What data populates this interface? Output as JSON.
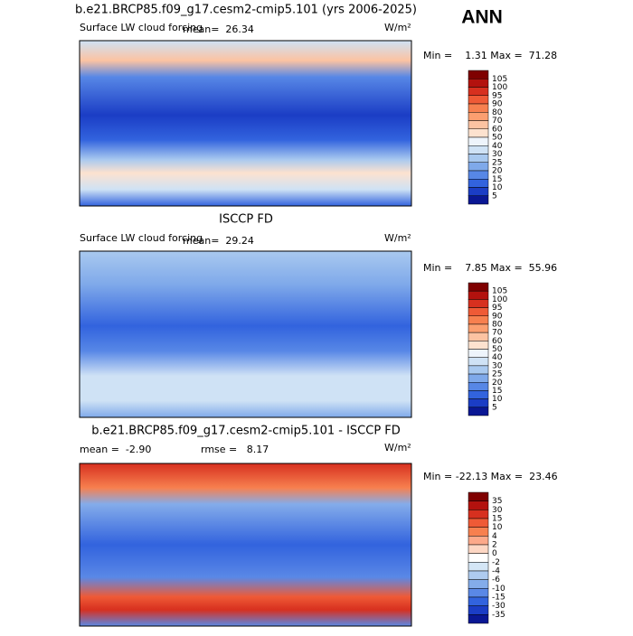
{
  "season": "ANN",
  "panels": [
    {
      "title": "b.e21.BRCP85.f09_g17.cesm2-cmip5.101 (yrs 2006-2025)",
      "variable": "Surface LW cloud forcing",
      "stat1": "mean=  26.34",
      "units": "W/m²",
      "minmax": "Min =    1.31 Max =  71.28",
      "colorbar": {
        "labels": [
          "105",
          "100",
          "95",
          "90",
          "80",
          "70",
          "60",
          "50",
          "40",
          "30",
          "25",
          "20",
          "15",
          "10",
          "5"
        ],
        "colors": [
          "#7f0000",
          "#b3120e",
          "#d7301f",
          "#ef5a36",
          "#f7804f",
          "#fb9f70",
          "#fcc3a2",
          "#fde2cf",
          "#eef4fb",
          "#cfe2f5",
          "#a9c9ef",
          "#7fa9ea",
          "#5787e6",
          "#3263de",
          "#1b3dc5",
          "#0a1794"
        ]
      }
    },
    {
      "title": "ISCCP FD",
      "variable": "Surface LW cloud forcing",
      "stat1": "mean=  29.24",
      "units": "W/m²",
      "minmax": "Min =    7.85 Max =  55.96",
      "colorbar": {
        "labels": [
          "105",
          "100",
          "95",
          "90",
          "80",
          "70",
          "60",
          "50",
          "40",
          "30",
          "25",
          "20",
          "15",
          "10",
          "5"
        ],
        "colors": [
          "#7f0000",
          "#b3120e",
          "#d7301f",
          "#ef5a36",
          "#f7804f",
          "#fb9f70",
          "#fcc3a2",
          "#fde2cf",
          "#eef4fb",
          "#cfe2f5",
          "#a9c9ef",
          "#7fa9ea",
          "#5787e6",
          "#3263de",
          "#1b3dc5",
          "#0a1794"
        ]
      }
    },
    {
      "title": "b.e21.BRCP85.f09_g17.cesm2-cmip5.101 - ISCCP FD",
      "stat1": "mean =  -2.90",
      "stat2": "rmse =   8.17",
      "units": "W/m²",
      "minmax": "Min = -22.13 Max =  23.46",
      "colorbar": {
        "labels": [
          "35",
          "30",
          "15",
          "10",
          "4",
          "2",
          "0",
          "-2",
          "-4",
          "-6",
          "-10",
          "-15",
          "-30",
          "-35"
        ],
        "colors": [
          "#7f0000",
          "#b3120e",
          "#d7301f",
          "#ef5a36",
          "#f7804f",
          "#fca98a",
          "#fdd7c4",
          "#ffffff",
          "#d4e6f6",
          "#aecbef",
          "#84acea",
          "#5a88e6",
          "#3263de",
          "#1b3dc5",
          "#0a1794"
        ]
      }
    }
  ]
}
